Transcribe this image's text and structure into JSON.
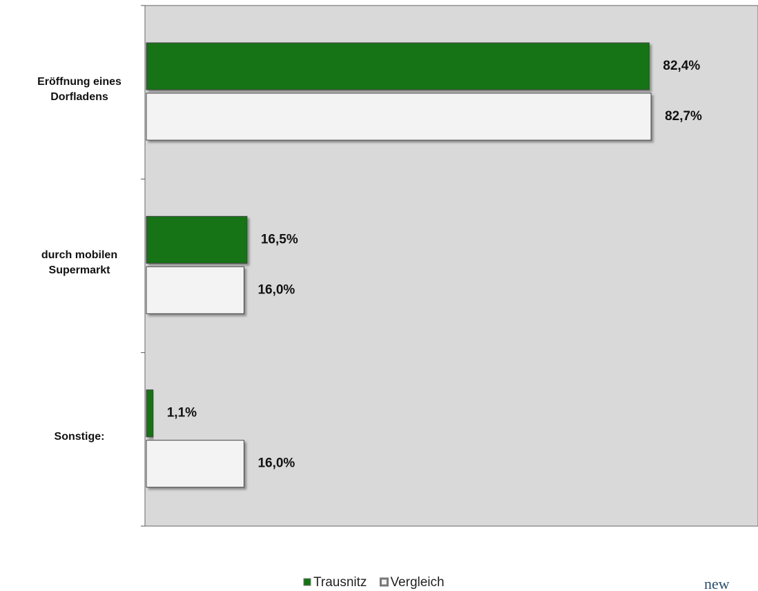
{
  "chart_data": {
    "type": "hbar",
    "categories": [
      "Eröffnung eines Dorfladens",
      "durch mobilen Supermarkt",
      "Sonstige:"
    ],
    "series": [
      {
        "name": "Trausnitz",
        "color": "#137313",
        "values": [
          82.4,
          16.5,
          1.1
        ],
        "value_labels": [
          "82,4%",
          "16,5%",
          "1,1%"
        ]
      },
      {
        "name": "Vergleich",
        "color": "#f3f3f3",
        "values": [
          82.7,
          16.0,
          16.0
        ],
        "value_labels": [
          "82,7%",
          "16,0%",
          "16,0%"
        ]
      }
    ],
    "xlim": [
      0,
      100
    ],
    "logo": "new"
  }
}
